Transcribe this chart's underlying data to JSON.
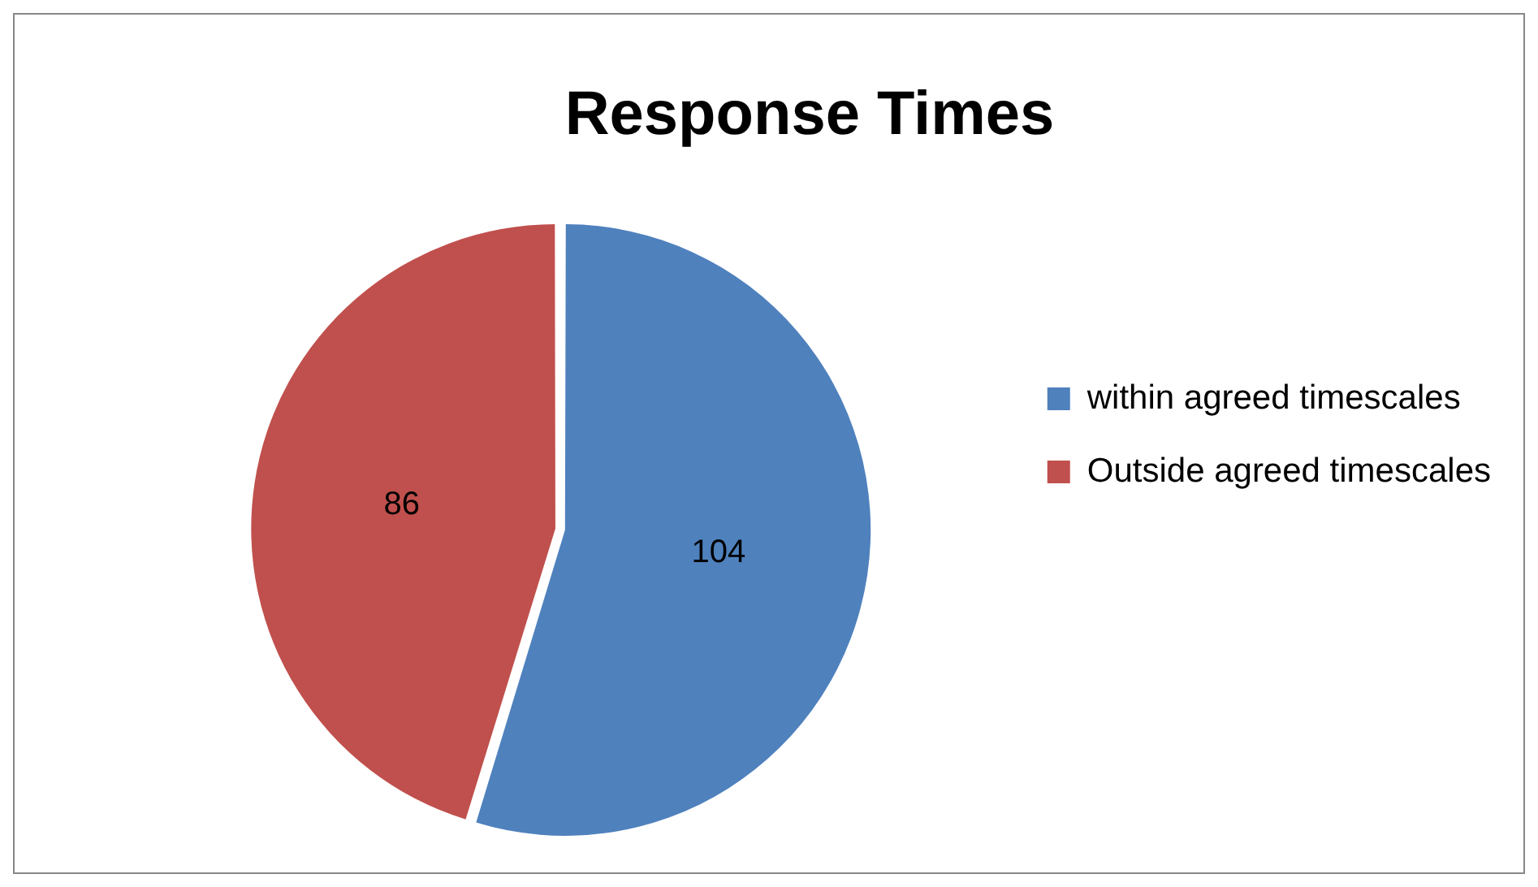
{
  "chart_data": {
    "type": "pie",
    "title": "Response Times",
    "categories": [
      "within agreed timescales",
      "Outside agreed timescales"
    ],
    "values": [
      104,
      86
    ],
    "colors": [
      "#4f81bd",
      "#c0504d"
    ],
    "data_labels": true,
    "legend": "right"
  }
}
